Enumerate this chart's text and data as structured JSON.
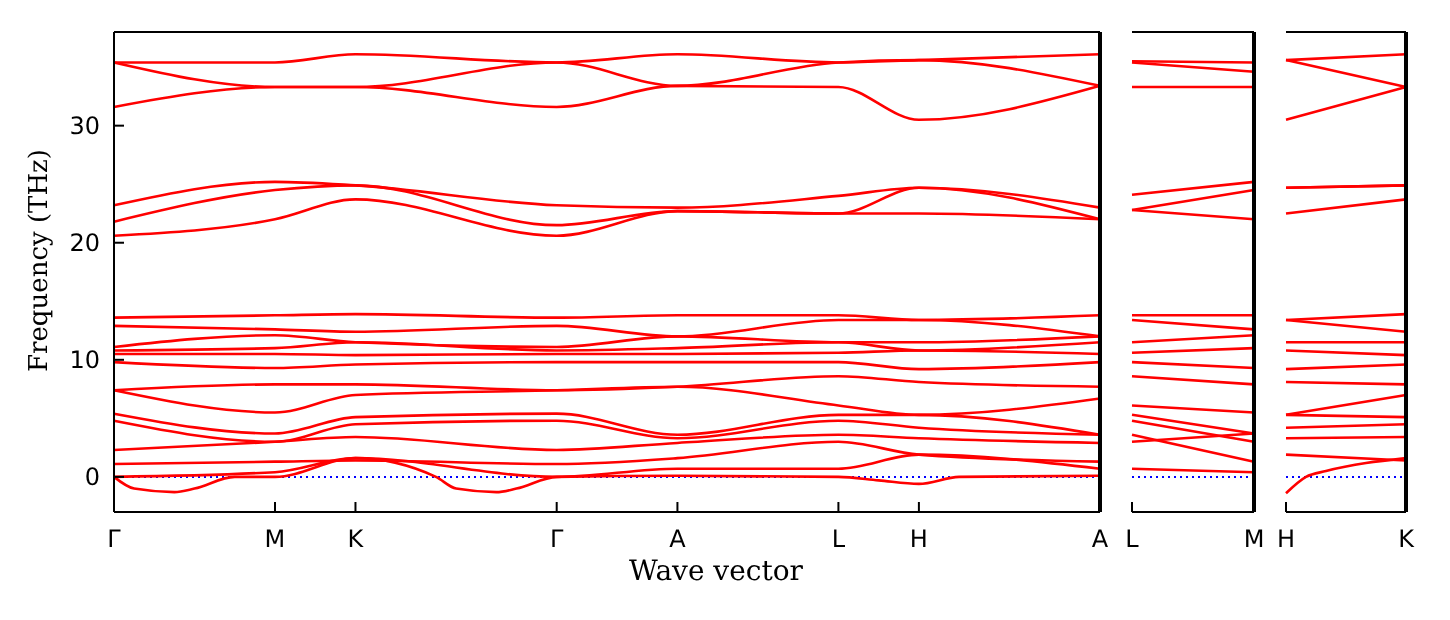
{
  "chart_data": [
    {
      "type": "line",
      "ylabel": "Frequency (THz)",
      "xlabel": "Wave vector",
      "categories": [
        "Γ",
        null,
        null,
        null,
        null,
        null,
        null,
        null,
        "M",
        null,
        null,
        null,
        "K",
        null,
        null,
        null,
        null,
        null,
        null,
        null,
        null,
        null,
        "Γ",
        null,
        null,
        null,
        null,
        null,
        "A",
        null,
        null,
        null,
        null,
        null,
        null,
        null,
        "L",
        null,
        null,
        null,
        "H",
        null,
        null,
        null,
        null,
        null,
        null,
        null,
        null,
        "A"
      ],
      "ylim": [
        -3,
        38
      ],
      "yticks": [
        0,
        10,
        20,
        30
      ],
      "marker": "none",
      "line_style": "solid",
      "ref_lines": [
        {
          "axis": "y",
          "value": 0,
          "color": "#0000ff",
          "line_style": "dotted"
        }
      ],
      "series": [
        {
          "color": "#ff0000",
          "values": [
            35.4,
            null,
            null,
            null,
            null,
            null,
            null,
            null,
            35.4,
            null,
            null,
            null,
            36.1,
            null,
            null,
            null,
            null,
            null,
            null,
            null,
            null,
            null,
            35.4,
            null,
            null,
            null,
            null,
            null,
            36.1,
            null,
            null,
            null,
            null,
            null,
            null,
            null,
            35.4,
            null,
            null,
            null,
            35.6,
            null,
            null,
            null,
            null,
            null,
            null,
            null,
            null,
            36.1
          ]
        },
        {
          "color": "#ff0000",
          "values": [
            35.4,
            null,
            null,
            null,
            null,
            null,
            null,
            null,
            33.3,
            null,
            null,
            null,
            33.3,
            null,
            null,
            null,
            null,
            null,
            null,
            null,
            null,
            null,
            35.4,
            null,
            null,
            null,
            null,
            null,
            33.4,
            null,
            null,
            null,
            null,
            null,
            null,
            null,
            35.4,
            null,
            null,
            null,
            35.6,
            null,
            null,
            null,
            null,
            null,
            null,
            null,
            null,
            33.4
          ]
        },
        {
          "color": "#ff0000",
          "values": [
            31.6,
            null,
            null,
            null,
            null,
            null,
            null,
            null,
            33.3,
            null,
            null,
            null,
            33.3,
            null,
            null,
            null,
            null,
            null,
            null,
            null,
            null,
            null,
            31.6,
            null,
            null,
            null,
            null,
            null,
            33.4,
            null,
            null,
            null,
            null,
            null,
            null,
            null,
            33.3,
            null,
            null,
            null,
            30.5,
            null,
            null,
            null,
            null,
            null,
            null,
            null,
            null,
            33.4
          ]
        },
        {
          "color": "#ff0000",
          "values": [
            23.2,
            null,
            null,
            null,
            null,
            null,
            null,
            null,
            25.2,
            null,
            null,
            null,
            24.9,
            null,
            null,
            null,
            null,
            null,
            null,
            null,
            null,
            null,
            23.2,
            null,
            null,
            null,
            null,
            null,
            23.0,
            null,
            null,
            null,
            null,
            null,
            null,
            null,
            24.0,
            null,
            null,
            null,
            24.7,
            null,
            null,
            null,
            null,
            null,
            null,
            null,
            null,
            23.0
          ]
        },
        {
          "color": "#ff0000",
          "values": [
            21.8,
            null,
            null,
            null,
            null,
            null,
            null,
            null,
            24.5,
            null,
            null,
            null,
            24.9,
            null,
            null,
            null,
            null,
            null,
            null,
            null,
            null,
            null,
            21.5,
            null,
            null,
            null,
            null,
            null,
            22.7,
            null,
            null,
            null,
            null,
            null,
            null,
            null,
            22.5,
            null,
            null,
            null,
            24.7,
            null,
            null,
            null,
            null,
            null,
            null,
            null,
            null,
            22.0
          ]
        },
        {
          "color": "#ff0000",
          "values": [
            20.6,
            null,
            null,
            null,
            null,
            null,
            null,
            null,
            22.0,
            null,
            null,
            null,
            23.7,
            null,
            null,
            null,
            null,
            null,
            null,
            null,
            null,
            null,
            20.6,
            null,
            null,
            null,
            null,
            null,
            22.7,
            null,
            null,
            null,
            null,
            null,
            null,
            null,
            22.5,
            null,
            null,
            null,
            22.5,
            null,
            null,
            null,
            null,
            null,
            null,
            null,
            null,
            22.0
          ]
        },
        {
          "color": "#ff0000",
          "values": [
            13.6,
            null,
            null,
            null,
            null,
            null,
            null,
            null,
            13.8,
            null,
            null,
            null,
            13.9,
            null,
            null,
            null,
            null,
            null,
            null,
            null,
            null,
            null,
            13.6,
            null,
            null,
            null,
            null,
            null,
            13.8,
            null,
            null,
            null,
            null,
            null,
            null,
            null,
            13.8,
            null,
            null,
            null,
            13.4,
            null,
            null,
            null,
            null,
            null,
            null,
            null,
            null,
            13.8
          ]
        },
        {
          "color": "#ff0000",
          "values": [
            12.9,
            null,
            null,
            null,
            null,
            null,
            null,
            null,
            12.6,
            null,
            null,
            null,
            12.4,
            null,
            null,
            null,
            null,
            null,
            null,
            null,
            null,
            null,
            12.9,
            null,
            null,
            null,
            null,
            null,
            12.0,
            null,
            null,
            null,
            null,
            null,
            null,
            null,
            13.4,
            null,
            null,
            null,
            13.4,
            null,
            null,
            null,
            null,
            null,
            null,
            null,
            null,
            12.0
          ]
        },
        {
          "color": "#ff0000",
          "values": [
            11.1,
            null,
            null,
            null,
            null,
            null,
            null,
            null,
            12.1,
            null,
            null,
            null,
            11.5,
            null,
            null,
            null,
            null,
            null,
            null,
            null,
            null,
            null,
            11.1,
            null,
            null,
            null,
            null,
            null,
            12.0,
            null,
            null,
            null,
            null,
            null,
            null,
            null,
            11.5,
            null,
            null,
            null,
            11.5,
            null,
            null,
            null,
            null,
            null,
            null,
            null,
            null,
            12.0
          ]
        },
        {
          "color": "#ff0000",
          "values": [
            10.8,
            null,
            null,
            null,
            null,
            null,
            null,
            null,
            11.0,
            null,
            null,
            null,
            11.5,
            null,
            null,
            null,
            null,
            null,
            null,
            null,
            null,
            null,
            10.8,
            null,
            null,
            null,
            null,
            null,
            11.0,
            null,
            null,
            null,
            null,
            null,
            null,
            null,
            11.5,
            null,
            null,
            null,
            10.8,
            null,
            null,
            null,
            null,
            null,
            null,
            null,
            null,
            11.5
          ]
        },
        {
          "color": "#ff0000",
          "values": [
            10.5,
            null,
            null,
            null,
            null,
            null,
            null,
            null,
            10.5,
            null,
            null,
            null,
            10.4,
            null,
            null,
            null,
            null,
            null,
            null,
            null,
            null,
            null,
            10.5,
            null,
            null,
            null,
            null,
            null,
            10.5,
            null,
            null,
            null,
            null,
            null,
            null,
            null,
            10.6,
            null,
            null,
            null,
            10.8,
            null,
            null,
            null,
            null,
            null,
            null,
            null,
            null,
            10.5
          ]
        },
        {
          "color": "#ff0000",
          "values": [
            9.8,
            null,
            null,
            null,
            null,
            null,
            null,
            null,
            9.3,
            null,
            null,
            null,
            9.6,
            null,
            null,
            null,
            null,
            null,
            null,
            null,
            null,
            null,
            9.8,
            null,
            null,
            null,
            null,
            null,
            9.8,
            null,
            null,
            null,
            null,
            null,
            null,
            null,
            9.8,
            null,
            null,
            null,
            9.2,
            null,
            null,
            null,
            null,
            null,
            null,
            null,
            null,
            9.8
          ]
        },
        {
          "color": "#ff0000",
          "values": [
            7.4,
            null,
            null,
            null,
            null,
            null,
            null,
            null,
            7.9,
            null,
            null,
            null,
            7.9,
            null,
            null,
            null,
            null,
            null,
            null,
            null,
            null,
            null,
            7.4,
            null,
            null,
            null,
            null,
            null,
            7.7,
            null,
            null,
            null,
            null,
            null,
            null,
            null,
            8.6,
            null,
            null,
            null,
            8.1,
            null,
            null,
            null,
            null,
            null,
            null,
            null,
            null,
            7.7
          ]
        },
        {
          "color": "#ff0000",
          "values": [
            7.4,
            null,
            null,
            null,
            null,
            null,
            null,
            null,
            5.5,
            null,
            null,
            null,
            7.0,
            null,
            null,
            null,
            null,
            null,
            null,
            null,
            null,
            null,
            7.4,
            null,
            null,
            null,
            null,
            null,
            7.7,
            null,
            null,
            null,
            null,
            null,
            null,
            null,
            6.1,
            null,
            null,
            null,
            5.3,
            null,
            null,
            null,
            null,
            null,
            null,
            null,
            null,
            6.7
          ]
        },
        {
          "color": "#ff0000",
          "values": [
            5.4,
            null,
            null,
            null,
            null,
            null,
            null,
            null,
            3.7,
            null,
            null,
            null,
            5.1,
            null,
            null,
            null,
            null,
            null,
            null,
            null,
            null,
            null,
            5.4,
            null,
            null,
            null,
            null,
            null,
            3.6,
            null,
            null,
            null,
            null,
            null,
            null,
            null,
            5.3,
            null,
            null,
            null,
            5.3,
            null,
            null,
            null,
            null,
            null,
            null,
            null,
            null,
            3.6
          ]
        },
        {
          "color": "#ff0000",
          "values": [
            4.8,
            null,
            null,
            null,
            null,
            null,
            null,
            null,
            3.0,
            null,
            null,
            null,
            4.5,
            null,
            null,
            null,
            null,
            null,
            null,
            null,
            null,
            null,
            4.8,
            null,
            null,
            null,
            null,
            null,
            3.3,
            null,
            null,
            null,
            null,
            null,
            null,
            null,
            4.8,
            null,
            null,
            null,
            4.2,
            null,
            null,
            null,
            null,
            null,
            null,
            null,
            null,
            3.6
          ]
        },
        {
          "color": "#ff0000",
          "values": [
            2.3,
            null,
            null,
            null,
            null,
            null,
            null,
            null,
            3.0,
            null,
            null,
            null,
            3.4,
            null,
            null,
            null,
            null,
            null,
            null,
            null,
            null,
            null,
            2.3,
            null,
            null,
            null,
            null,
            null,
            2.9,
            null,
            null,
            null,
            null,
            null,
            null,
            null,
            3.6,
            null,
            null,
            null,
            3.3,
            null,
            null,
            null,
            null,
            null,
            null,
            null,
            null,
            2.9
          ]
        },
        {
          "color": "#ff0000",
          "values": [
            1.1,
            null,
            null,
            null,
            null,
            null,
            null,
            null,
            1.3,
            null,
            null,
            null,
            1.4,
            null,
            null,
            null,
            null,
            null,
            null,
            null,
            null,
            null,
            1.1,
            null,
            null,
            null,
            null,
            null,
            1.6,
            null,
            null,
            null,
            null,
            null,
            null,
            null,
            3.0,
            null,
            null,
            null,
            1.9,
            null,
            null,
            null,
            null,
            null,
            null,
            null,
            null,
            1.3
          ]
        },
        {
          "color": "#ff0000",
          "values": [
            0,
            null,
            null,
            null,
            null,
            null,
            null,
            null,
            0.4,
            null,
            null,
            null,
            1.6,
            null,
            null,
            null,
            null,
            null,
            null,
            null,
            null,
            null,
            0,
            null,
            null,
            null,
            null,
            null,
            0.7,
            null,
            null,
            null,
            null,
            null,
            null,
            null,
            0.7,
            null,
            null,
            null,
            1.9,
            null,
            null,
            null,
            null,
            null,
            null,
            null,
            null,
            0.7
          ]
        },
        {
          "color": "#ff0000",
          "values": [
            0,
            -1.0,
            null,
            -1.3,
            -1.0,
            null,
            0,
            null,
            0,
            null,
            null,
            null,
            1.6,
            null,
            null,
            null,
            0,
            -1.0,
            null,
            -1.3,
            -1.0,
            null,
            0,
            null,
            null,
            null,
            null,
            null,
            0.1,
            null,
            null,
            null,
            null,
            null,
            null,
            null,
            0,
            null,
            -0.3,
            null,
            -0.6,
            null,
            0,
            null,
            null,
            null,
            null,
            null,
            null,
            0.1
          ]
        }
      ]
    },
    {
      "type": "line",
      "categories": [
        "L",
        "M"
      ],
      "ylim": [
        -3,
        38
      ],
      "tick_labels": "x",
      "marker": "none",
      "line_style": "solid",
      "ref_lines": [
        {
          "axis": "y",
          "value": 0,
          "color": "#0000ff",
          "line_style": "dotted"
        }
      ],
      "series": [
        {
          "color": "#ff0000",
          "values": [
            35.5,
            35.4
          ]
        },
        {
          "color": "#ff0000",
          "values": [
            35.4,
            34.6
          ]
        },
        {
          "color": "#ff0000",
          "values": [
            33.3,
            33.3
          ]
        },
        {
          "color": "#ff0000",
          "values": [
            24.1,
            25.2
          ]
        },
        {
          "color": "#ff0000",
          "values": [
            22.8,
            24.5
          ]
        },
        {
          "color": "#ff0000",
          "values": [
            22.8,
            22.0
          ]
        },
        {
          "color": "#ff0000",
          "values": [
            13.8,
            13.8
          ]
        },
        {
          "color": "#ff0000",
          "values": [
            13.4,
            12.6
          ]
        },
        {
          "color": "#ff0000",
          "values": [
            11.5,
            12.1
          ]
        },
        {
          "color": "#ff0000",
          "values": [
            10.6,
            11.0
          ]
        },
        {
          "color": "#ff0000",
          "values": [
            9.8,
            9.3
          ]
        },
        {
          "color": "#ff0000",
          "values": [
            8.6,
            7.9
          ]
        },
        {
          "color": "#ff0000",
          "values": [
            6.1,
            5.5
          ]
        },
        {
          "color": "#ff0000",
          "values": [
            5.3,
            3.7
          ]
        },
        {
          "color": "#ff0000",
          "values": [
            4.8,
            3.0
          ]
        },
        {
          "color": "#ff0000",
          "values": [
            3.6,
            1.3
          ]
        },
        {
          "color": "#ff0000",
          "values": [
            3.0,
            3.7
          ]
        },
        {
          "color": "#ff0000",
          "values": [
            0.7,
            0.4
          ]
        }
      ]
    },
    {
      "type": "line",
      "categories": [
        "H",
        null,
        null,
        null,
        null,
        null,
        "K"
      ],
      "ylim": [
        -3,
        38
      ],
      "tick_labels": "x",
      "marker": "none",
      "line_style": "solid",
      "ref_lines": [
        {
          "axis": "y",
          "value": 0,
          "color": "#0000ff",
          "line_style": "dotted"
        }
      ],
      "series": [
        {
          "color": "#ff0000",
          "values": [
            35.6,
            null,
            null,
            null,
            null,
            null,
            36.1
          ]
        },
        {
          "color": "#ff0000",
          "values": [
            35.6,
            null,
            null,
            null,
            null,
            null,
            33.3
          ]
        },
        {
          "color": "#ff0000",
          "values": [
            30.5,
            null,
            null,
            null,
            null,
            null,
            33.3
          ]
        },
        {
          "color": "#ff0000",
          "values": [
            24.7,
            null,
            null,
            null,
            null,
            null,
            24.9
          ]
        },
        {
          "color": "#ff0000",
          "values": [
            24.7,
            null,
            null,
            null,
            null,
            null,
            24.9
          ]
        },
        {
          "color": "#ff0000",
          "values": [
            22.5,
            null,
            null,
            null,
            null,
            null,
            23.7
          ]
        },
        {
          "color": "#ff0000",
          "values": [
            13.4,
            null,
            null,
            null,
            null,
            null,
            13.9
          ]
        },
        {
          "color": "#ff0000",
          "values": [
            13.4,
            null,
            null,
            null,
            null,
            null,
            12.4
          ]
        },
        {
          "color": "#ff0000",
          "values": [
            11.5,
            null,
            null,
            null,
            null,
            null,
            11.5
          ]
        },
        {
          "color": "#ff0000",
          "values": [
            10.8,
            null,
            null,
            null,
            null,
            null,
            10.4
          ]
        },
        {
          "color": "#ff0000",
          "values": [
            9.2,
            null,
            null,
            null,
            null,
            null,
            9.6
          ]
        },
        {
          "color": "#ff0000",
          "values": [
            8.1,
            null,
            null,
            null,
            null,
            null,
            7.9
          ]
        },
        {
          "color": "#ff0000",
          "values": [
            5.3,
            null,
            null,
            null,
            null,
            null,
            7.0
          ]
        },
        {
          "color": "#ff0000",
          "values": [
            5.3,
            null,
            null,
            null,
            null,
            null,
            5.1
          ]
        },
        {
          "color": "#ff0000",
          "values": [
            4.2,
            null,
            null,
            null,
            null,
            null,
            4.5
          ]
        },
        {
          "color": "#ff0000",
          "values": [
            3.3,
            null,
            null,
            null,
            null,
            null,
            3.4
          ]
        },
        {
          "color": "#ff0000",
          "values": [
            1.9,
            null,
            null,
            null,
            null,
            null,
            1.4
          ]
        },
        {
          "color": "#ff0000",
          "values": [
            -1.4,
            0,
            0.5,
            null,
            null,
            null,
            1.6
          ]
        }
      ]
    }
  ]
}
